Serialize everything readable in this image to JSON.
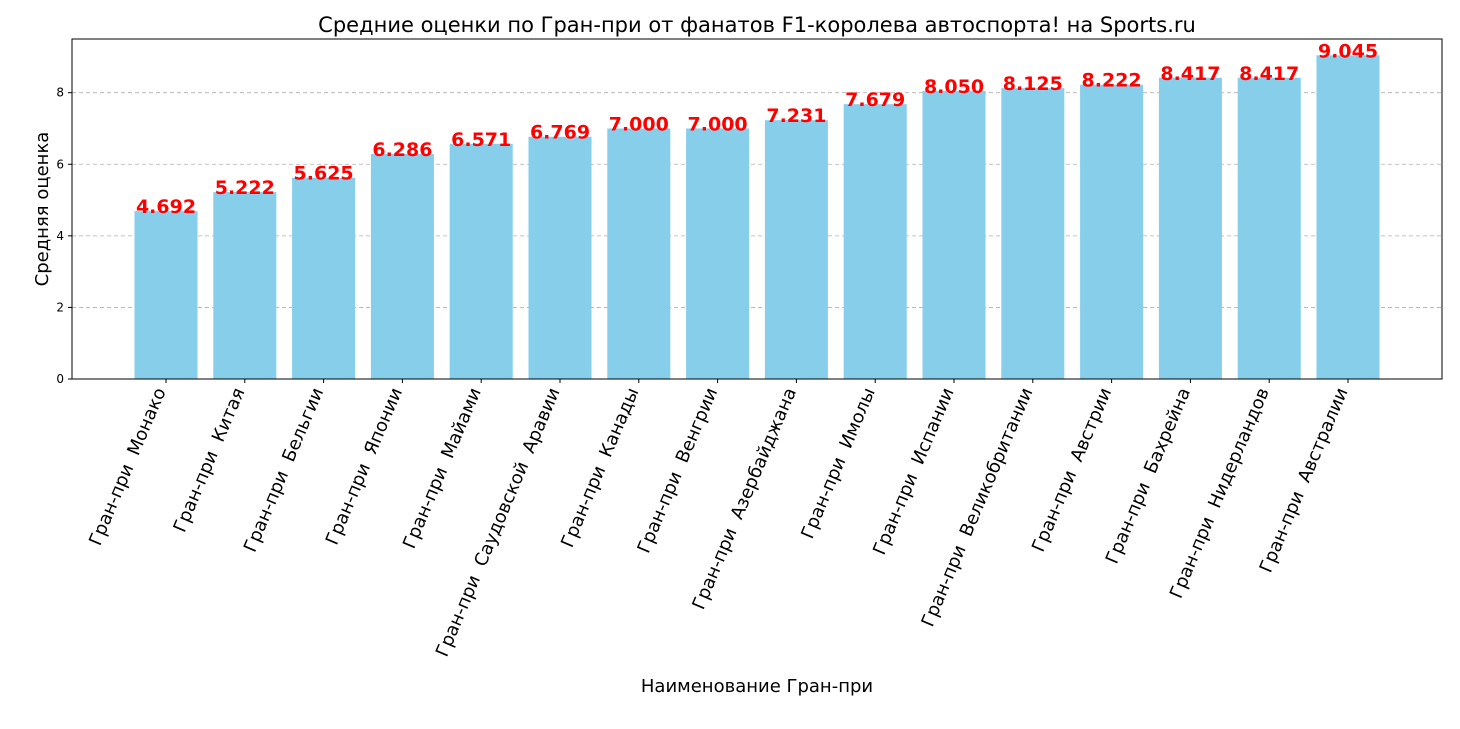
{
  "chart_data": {
    "type": "bar",
    "title": "Средние оценки по Гран-при от фанатов F1-королева автоспорта! на Sports.ru",
    "xlabel": "Наименование Гран-при",
    "ylabel": "Средняя оценка",
    "ylim": [
      0,
      9.5
    ],
    "yticks": [
      0,
      2,
      4,
      6,
      8
    ],
    "grid": "y, dashed",
    "bar_color": "#87ceeb",
    "label_color": "#ff0000",
    "categories": [
      "Гран-при  Монако",
      "Гран-при  Китая",
      "Гран-при  Бельгии",
      "Гран-при  Японии",
      "Гран-при  Майами",
      "Гран-при  Саудовской  Аравии",
      "Гран-при  Канады",
      "Гран-при  Венгрии",
      "Гран-при  Азербайджана",
      "Гран-при  Имолы",
      "Гран-при  Испании",
      "Гран-при  Великобритании",
      "Гран-при  Австрии",
      "Гран-при  Бахрейна",
      "Гран-при  Нидерландов",
      "Гран-при  Австралии"
    ],
    "values": [
      4.692,
      5.222,
      5.625,
      6.286,
      6.571,
      6.769,
      7.0,
      7.0,
      7.231,
      7.679,
      8.05,
      8.125,
      8.222,
      8.417,
      8.417,
      9.045
    ],
    "value_labels": [
      "4.692",
      "5.222",
      "5.625",
      "6.286",
      "6.571",
      "6.769",
      "7.000",
      "7.000",
      "7.231",
      "7.679",
      "8.050",
      "8.125",
      "8.222",
      "8.417",
      "8.417",
      "9.045"
    ]
  }
}
